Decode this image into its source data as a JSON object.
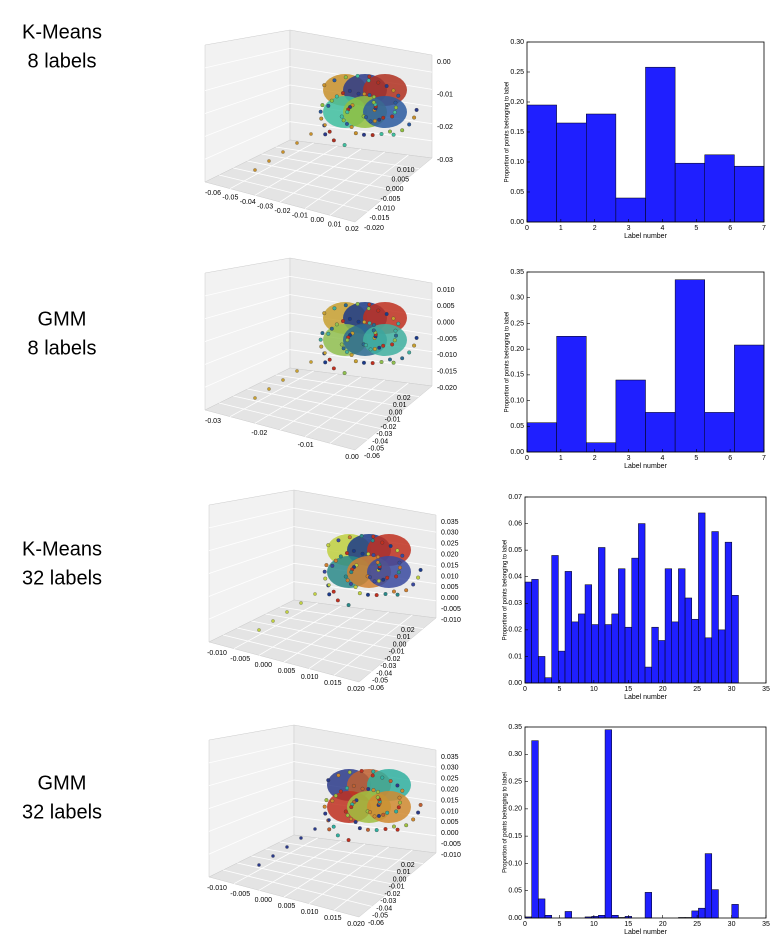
{
  "chart_data": [
    {
      "type": "scatter3d",
      "title": [
        "K-Means",
        "8 labels"
      ],
      "xticks": [
        {
          "value": -0.06,
          "label": "-0.06"
        },
        {
          "value": -0.05,
          "label": "-0.05"
        },
        {
          "value": -0.04,
          "label": "-0.04"
        },
        {
          "value": -0.03,
          "label": "-0.03"
        },
        {
          "value": -0.02,
          "label": "-0.02"
        },
        {
          "value": -0.01,
          "label": "-0.01"
        },
        {
          "value": 0,
          "label": "0.00"
        },
        {
          "value": 0.01,
          "label": "0.01"
        },
        {
          "value": 0.02,
          "label": "0.02"
        }
      ],
      "yticks": [
        {
          "value": 0.01,
          "label": "0.010"
        },
        {
          "value": 0.005,
          "label": "0.005"
        },
        {
          "value": 0,
          "label": "0.000"
        },
        {
          "value": -0.005,
          "label": "-0.005"
        },
        {
          "value": -0.01,
          "label": "-0.010"
        },
        {
          "value": -0.015,
          "label": "-0.015"
        },
        {
          "value": -0.02,
          "label": "-0.020"
        }
      ],
      "zticks": [
        {
          "value": 0,
          "label": "0.00"
        },
        {
          "value": -0.01,
          "label": "-0.01"
        },
        {
          "value": -0.02,
          "label": "-0.02"
        },
        {
          "value": -0.03,
          "label": "-0.03"
        }
      ]
    },
    {
      "type": "histogram",
      "color": "#1f1fff",
      "xlabel": "Label number",
      "ylabel": "Proportion of points belonging to label",
      "bins": [
        0,
        0.875,
        1.75,
        2.625,
        3.5,
        4.375,
        5.25,
        6.125,
        7
      ],
      "values": [
        0.195,
        0.165,
        0.18,
        0.04,
        0.258,
        0.098,
        0.112,
        0.093
      ],
      "xlim": [
        0,
        7
      ],
      "xticks": [
        0,
        1,
        2,
        3,
        4,
        5,
        6,
        7
      ],
      "ylim": [
        0,
        0.3
      ],
      "yticks": [
        {
          "value": 0,
          "label": "0.00"
        },
        {
          "value": 0.05,
          "label": "0.05"
        },
        {
          "value": 0.1,
          "label": "0.10"
        },
        {
          "value": 0.15,
          "label": "0.15"
        },
        {
          "value": 0.2,
          "label": "0.20"
        },
        {
          "value": 0.25,
          "label": "0.25"
        },
        {
          "value": 0.3,
          "label": "0.30"
        }
      ]
    },
    {
      "type": "scatter3d",
      "title": [
        "GMM",
        "8 labels"
      ],
      "xticks": [
        {
          "value": -0.03,
          "label": "-0.03"
        },
        {
          "value": -0.02,
          "label": "-0.02"
        },
        {
          "value": -0.01,
          "label": "-0.01"
        },
        {
          "value": 0,
          "label": "0.00"
        }
      ],
      "yticks": [
        {
          "value": 0.02,
          "label": "0.02"
        },
        {
          "value": 0.01,
          "label": "0.01"
        },
        {
          "value": 0,
          "label": "0.00"
        },
        {
          "value": -0.01,
          "label": "-0.01"
        },
        {
          "value": -0.02,
          "label": "-0.02"
        },
        {
          "value": -0.03,
          "label": "-0.03"
        },
        {
          "value": -0.04,
          "label": "-0.04"
        },
        {
          "value": -0.05,
          "label": "-0.05"
        },
        {
          "value": -0.06,
          "label": "-0.06"
        }
      ],
      "zticks": [
        {
          "value": 0.01,
          "label": "0.010"
        },
        {
          "value": 0.005,
          "label": "0.005"
        },
        {
          "value": 0,
          "label": "0.000"
        },
        {
          "value": -0.005,
          "label": "-0.005"
        },
        {
          "value": -0.01,
          "label": "-0.010"
        },
        {
          "value": -0.015,
          "label": "-0.015"
        },
        {
          "value": -0.02,
          "label": "-0.020"
        }
      ]
    },
    {
      "type": "histogram",
      "color": "#1f1fff",
      "xlabel": "Label number",
      "ylabel": "Proportion of points belonging to label",
      "bins": [
        0,
        0.875,
        1.75,
        2.625,
        3.5,
        4.375,
        5.25,
        6.125,
        7
      ],
      "values": [
        0.057,
        0.225,
        0.018,
        0.14,
        0.077,
        0.335,
        0.077,
        0.208
      ],
      "xlim": [
        0,
        7
      ],
      "xticks": [
        0,
        1,
        2,
        3,
        4,
        5,
        6,
        7
      ],
      "ylim": [
        0,
        0.35
      ],
      "yticks": [
        {
          "value": 0,
          "label": "0.00"
        },
        {
          "value": 0.05,
          "label": "0.05"
        },
        {
          "value": 0.1,
          "label": "0.10"
        },
        {
          "value": 0.15,
          "label": "0.15"
        },
        {
          "value": 0.2,
          "label": "0.20"
        },
        {
          "value": 0.25,
          "label": "0.25"
        },
        {
          "value": 0.3,
          "label": "0.30"
        },
        {
          "value": 0.35,
          "label": "0.35"
        }
      ]
    },
    {
      "type": "scatter3d",
      "title": [
        "K-Means",
        "32 labels"
      ],
      "xticks": [
        {
          "value": -0.01,
          "label": "-0.010"
        },
        {
          "value": -0.005,
          "label": "-0.005"
        },
        {
          "value": 0,
          "label": "0.000"
        },
        {
          "value": 0.005,
          "label": "0.005"
        },
        {
          "value": 0.01,
          "label": "0.010"
        },
        {
          "value": 0.015,
          "label": "0.015"
        },
        {
          "value": 0.02,
          "label": "0.020"
        }
      ],
      "yticks": [
        {
          "value": 0.02,
          "label": "0.02"
        },
        {
          "value": 0.01,
          "label": "0.01"
        },
        {
          "value": 0,
          "label": "0.00"
        },
        {
          "value": -0.01,
          "label": "-0.01"
        },
        {
          "value": -0.02,
          "label": "-0.02"
        },
        {
          "value": -0.03,
          "label": "-0.03"
        },
        {
          "value": -0.04,
          "label": "-0.04"
        },
        {
          "value": -0.05,
          "label": "-0.05"
        },
        {
          "value": -0.06,
          "label": "-0.06"
        }
      ],
      "zticks": [
        {
          "value": 0.035,
          "label": "0.035"
        },
        {
          "value": 0.03,
          "label": "0.030"
        },
        {
          "value": 0.025,
          "label": "0.025"
        },
        {
          "value": 0.02,
          "label": "0.020"
        },
        {
          "value": 0.015,
          "label": "0.015"
        },
        {
          "value": 0.01,
          "label": "0.010"
        },
        {
          "value": 0.005,
          "label": "0.005"
        },
        {
          "value": 0,
          "label": "0.000"
        },
        {
          "value": -0.005,
          "label": "-0.005"
        },
        {
          "value": -0.01,
          "label": "-0.010"
        }
      ]
    },
    {
      "type": "histogram",
      "color": "#1f1fff",
      "xlabel": "Label number",
      "ylabel": "Proportion of points belonging to label",
      "bins": [
        0,
        0.96875,
        1.9375,
        2.90625,
        3.875,
        4.84375,
        5.8125,
        6.78125,
        7.75,
        8.71875,
        9.6875,
        10.65625,
        11.625,
        12.59375,
        13.5625,
        14.53125,
        15.5,
        16.46875,
        17.4375,
        18.40625,
        19.375,
        20.34375,
        21.3125,
        22.28125,
        23.25,
        24.21875,
        25.1875,
        26.15625,
        27.125,
        28.09375,
        29.0625,
        30.03125,
        31
      ],
      "values": [
        0.038,
        0.039,
        0.01,
        0.002,
        0.048,
        0.012,
        0.042,
        0.023,
        0.026,
        0.037,
        0.022,
        0.051,
        0.022,
        0.026,
        0.043,
        0.021,
        0.047,
        0.06,
        0.006,
        0.021,
        0.016,
        0.043,
        0.023,
        0.043,
        0.032,
        0.024,
        0.064,
        0.017,
        0.057,
        0.02,
        0.053,
        0.033
      ],
      "xlim": [
        0,
        35
      ],
      "xticks": [
        0,
        5,
        10,
        15,
        20,
        25,
        30,
        35
      ],
      "ylim": [
        0,
        0.07
      ],
      "yticks": [
        {
          "value": 0,
          "label": "0.00"
        },
        {
          "value": 0.01,
          "label": "0.01"
        },
        {
          "value": 0.02,
          "label": "0.02"
        },
        {
          "value": 0.03,
          "label": "0.03"
        },
        {
          "value": 0.04,
          "label": "0.04"
        },
        {
          "value": 0.05,
          "label": "0.05"
        },
        {
          "value": 0.06,
          "label": "0.06"
        },
        {
          "value": 0.07,
          "label": "0.07"
        }
      ]
    },
    {
      "type": "scatter3d",
      "title": [
        "GMM",
        "32 labels"
      ],
      "xticks": [
        {
          "value": -0.01,
          "label": "-0.010"
        },
        {
          "value": -0.005,
          "label": "-0.005"
        },
        {
          "value": 0,
          "label": "0.000"
        },
        {
          "value": 0.005,
          "label": "0.005"
        },
        {
          "value": 0.01,
          "label": "0.010"
        },
        {
          "value": 0.015,
          "label": "0.015"
        },
        {
          "value": 0.02,
          "label": "0.020"
        }
      ],
      "yticks": [
        {
          "value": 0.02,
          "label": "0.02"
        },
        {
          "value": 0.01,
          "label": "0.01"
        },
        {
          "value": 0,
          "label": "0.00"
        },
        {
          "value": -0.01,
          "label": "-0.01"
        },
        {
          "value": -0.02,
          "label": "-0.02"
        },
        {
          "value": -0.03,
          "label": "-0.03"
        },
        {
          "value": -0.04,
          "label": "-0.04"
        },
        {
          "value": -0.05,
          "label": "-0.05"
        },
        {
          "value": -0.06,
          "label": "-0.06"
        }
      ],
      "zticks": [
        {
          "value": 0.035,
          "label": "0.035"
        },
        {
          "value": 0.03,
          "label": "0.030"
        },
        {
          "value": 0.025,
          "label": "0.025"
        },
        {
          "value": 0.02,
          "label": "0.020"
        },
        {
          "value": 0.015,
          "label": "0.015"
        },
        {
          "value": 0.01,
          "label": "0.010"
        },
        {
          "value": 0.005,
          "label": "0.005"
        },
        {
          "value": 0,
          "label": "0.000"
        },
        {
          "value": -0.005,
          "label": "-0.005"
        },
        {
          "value": -0.01,
          "label": "-0.010"
        }
      ]
    },
    {
      "type": "histogram",
      "color": "#1f1fff",
      "xlabel": "Label number",
      "ylabel": "Proportion of points belonging to label",
      "bins": [
        0,
        0.96875,
        1.9375,
        2.90625,
        3.875,
        4.84375,
        5.8125,
        6.78125,
        7.75,
        8.71875,
        9.6875,
        10.65625,
        11.625,
        12.59375,
        13.5625,
        14.53125,
        15.5,
        16.46875,
        17.4375,
        18.40625,
        19.375,
        20.34375,
        21.3125,
        22.28125,
        23.25,
        24.21875,
        25.1875,
        26.15625,
        27.125,
        28.09375,
        29.0625,
        30.03125,
        31
      ],
      "values": [
        0.002,
        0.325,
        0.035,
        0.005,
        0,
        0,
        0.012,
        0,
        0,
        0.002,
        0.003,
        0.005,
        0.345,
        0.005,
        0.001,
        0.003,
        0,
        0,
        0.047,
        0,
        0,
        0,
        0,
        0.001,
        0.001,
        0.013,
        0.018,
        0.118,
        0.052,
        0,
        0,
        0.025
      ],
      "xlim": [
        0,
        35
      ],
      "xticks": [
        0,
        5,
        10,
        15,
        20,
        25,
        30,
        35
      ],
      "ylim": [
        0,
        0.35
      ],
      "yticks": [
        {
          "value": 0,
          "label": "0.00"
        },
        {
          "value": 0.05,
          "label": "0.05"
        },
        {
          "value": 0.1,
          "label": "0.10"
        },
        {
          "value": 0.15,
          "label": "0.15"
        },
        {
          "value": 0.2,
          "label": "0.20"
        },
        {
          "value": 0.25,
          "label": "0.25"
        },
        {
          "value": 0.3,
          "label": "0.30"
        },
        {
          "value": 0.35,
          "label": "0.35"
        }
      ]
    }
  ]
}
